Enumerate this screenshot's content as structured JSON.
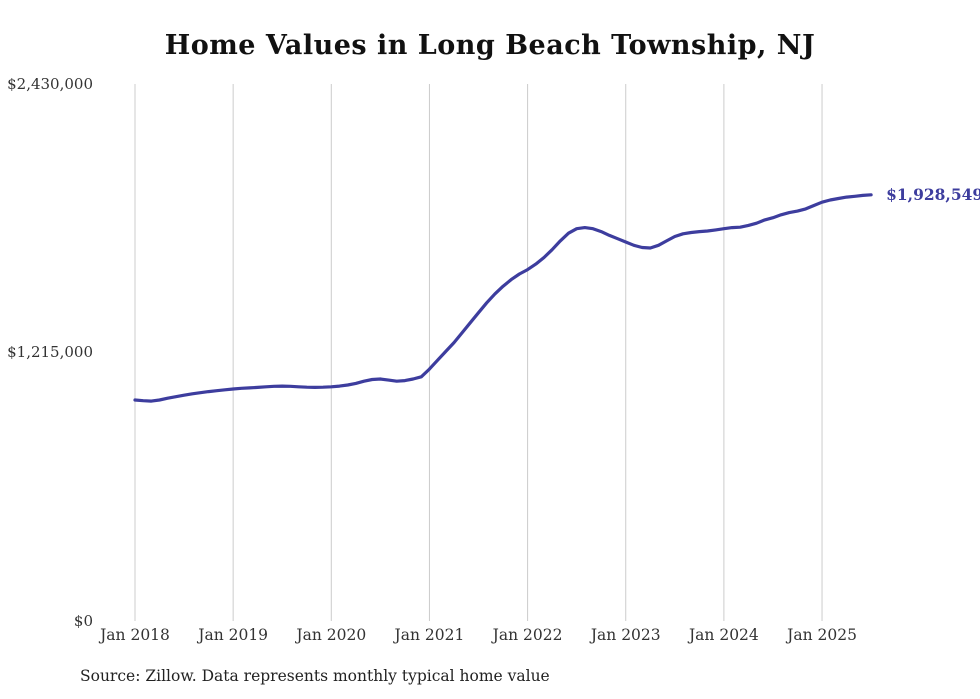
{
  "title": "Home Values in Long Beach Township, NJ",
  "source_note": "Source: Zillow. Data represents monthly typical home value",
  "end_label": "$1,928,549",
  "colors": {
    "line": "#3d3d9e",
    "grid": "#cccccc",
    "text": "#333333",
    "title": "#111111"
  },
  "chart_data": {
    "type": "line",
    "title": "Home Values in Long Beach Township, NJ",
    "xlabel": "",
    "ylabel": "",
    "ylim": [
      0,
      2430000
    ],
    "grid": "vertical-only",
    "legend": "none",
    "y_ticks": [
      {
        "value": 2430000,
        "label": "$2,430,000"
      },
      {
        "value": 1215000,
        "label": "$1,215,000"
      },
      {
        "value": 0,
        "label": "$0"
      }
    ],
    "x_tick_labels": [
      "Jan 2018",
      "Jan 2019",
      "Jan 2020",
      "Jan 2021",
      "Jan 2022",
      "Jan 2023",
      "Jan 2024",
      "Jan 2025"
    ],
    "x_tick_month_index": [
      0,
      12,
      24,
      36,
      48,
      60,
      72,
      84
    ],
    "x_start": "Jan 2018",
    "frequency": "monthly",
    "last_point_label": "$1,928,549",
    "values": [
      1000000,
      997000,
      995000,
      1000000,
      1008000,
      1015000,
      1022000,
      1028000,
      1033000,
      1038000,
      1042000,
      1046000,
      1050000,
      1053000,
      1055000,
      1057000,
      1060000,
      1062000,
      1063000,
      1062000,
      1060000,
      1058000,
      1057000,
      1058000,
      1060000,
      1063000,
      1068000,
      1075000,
      1085000,
      1093000,
      1095000,
      1090000,
      1085000,
      1088000,
      1095000,
      1105000,
      1140000,
      1180000,
      1220000,
      1260000,
      1305000,
      1350000,
      1395000,
      1440000,
      1480000,
      1515000,
      1545000,
      1570000,
      1590000,
      1615000,
      1645000,
      1680000,
      1720000,
      1755000,
      1775000,
      1780000,
      1775000,
      1762000,
      1745000,
      1730000,
      1715000,
      1700000,
      1690000,
      1688000,
      1700000,
      1720000,
      1740000,
      1752000,
      1758000,
      1762000,
      1765000,
      1770000,
      1775000,
      1780000,
      1782000,
      1790000,
      1800000,
      1815000,
      1825000,
      1838000,
      1848000,
      1855000,
      1865000,
      1880000,
      1895000,
      1905000,
      1912000,
      1918000,
      1922000,
      1926000,
      1928549
    ]
  }
}
